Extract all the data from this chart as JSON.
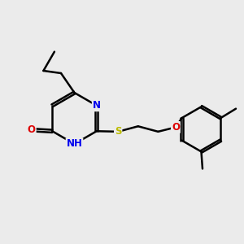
{
  "bg_color": "#ebebeb",
  "bond_color": "#000000",
  "bond_lw": 1.8,
  "atom_colors": {
    "N": "#0000ee",
    "O": "#dd0000",
    "S": "#bbbb00",
    "C": "#000000"
  },
  "font_size": 8.5,
  "xlim": [
    0,
    10
  ],
  "ylim": [
    0,
    10
  ]
}
